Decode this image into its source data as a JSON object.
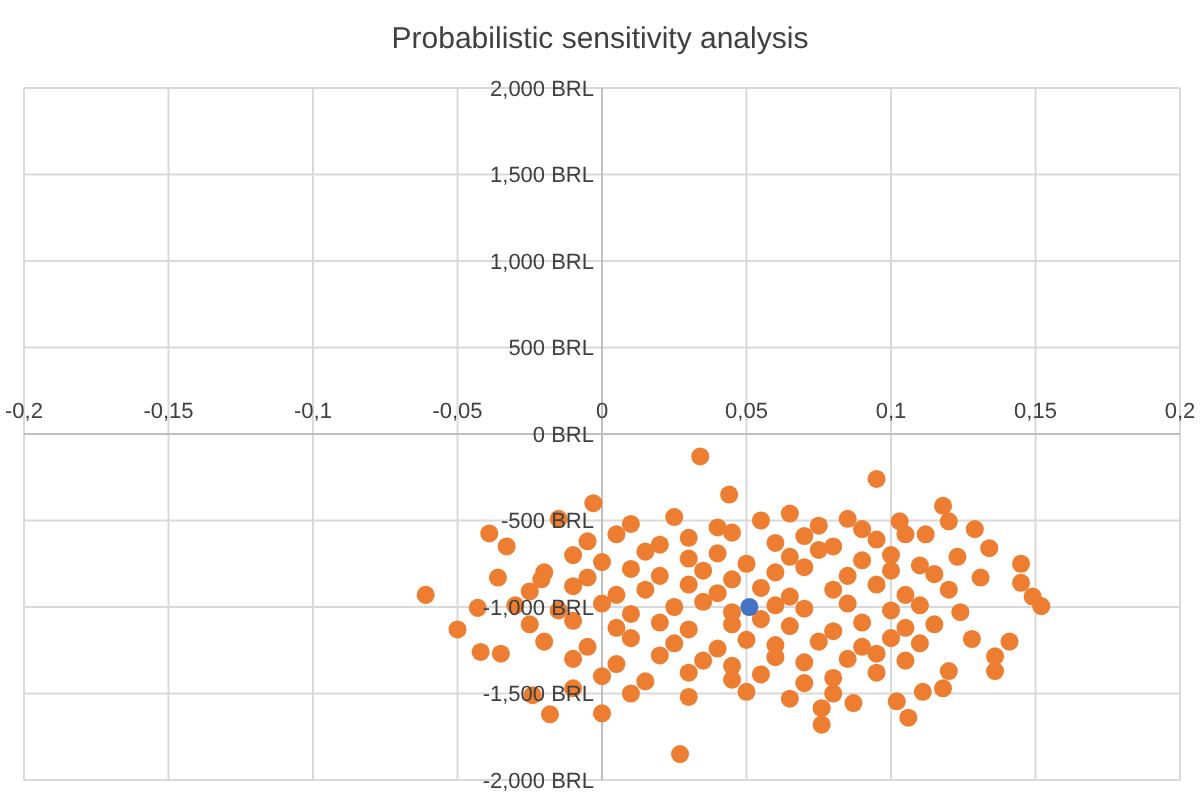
{
  "chart_data": {
    "type": "scatter",
    "title": "Probabilistic sensitivity analysis",
    "xlim": [
      -0.2,
      0.2
    ],
    "xticks": [
      {
        "value": -0.2,
        "label": "-0,2"
      },
      {
        "value": -0.15,
        "label": "-0,15"
      },
      {
        "value": -0.1,
        "label": "-0,1"
      },
      {
        "value": -0.05,
        "label": "-0,05"
      },
      {
        "value": 0,
        "label": "0"
      },
      {
        "value": 0.05,
        "label": "0,05"
      },
      {
        "value": 0.1,
        "label": "0,1"
      },
      {
        "value": 0.15,
        "label": "0,15"
      },
      {
        "value": 0.2,
        "label": "0,2"
      }
    ],
    "ylim": [
      -2000,
      2000
    ],
    "yticks": [
      {
        "value": -2000,
        "label": "-2,000 BRL"
      },
      {
        "value": -1500,
        "label": "-1,500 BRL"
      },
      {
        "value": -1000,
        "label": "-1,000 BRL"
      },
      {
        "value": -500,
        "label": "-500 BRL"
      },
      {
        "value": 0,
        "label": "0 BRL"
      },
      {
        "value": 500,
        "label": "500 BRL"
      },
      {
        "value": 1000,
        "label": "1,000 BRL"
      },
      {
        "value": 1500,
        "label": "1,500 BRL"
      },
      {
        "value": 2000,
        "label": "2,000 BRL"
      }
    ],
    "grid": true,
    "marker": "circle",
    "series": [
      {
        "color": "#ed7d31",
        "x": [
          0.01,
          0.025,
          0.04,
          0.055,
          0.065,
          0.075,
          0.085,
          0.09,
          -0.005,
          0.005,
          0.02,
          0.03,
          0.045,
          0.06,
          0.07,
          0.08,
          0.095,
          0.105,
          -0.01,
          0,
          0.015,
          0.03,
          0.04,
          0.05,
          0.065,
          0.075,
          0.09,
          0.1,
          0.11,
          -0.02,
          -0.005,
          0.01,
          0.02,
          0.035,
          0.045,
          0.06,
          0.07,
          0.085,
          0.1,
          0.115,
          -0.025,
          -0.01,
          0.005,
          0.015,
          0.03,
          0.04,
          0.055,
          0.065,
          0.08,
          0.095,
          0.105,
          0.12,
          -0.03,
          -0.015,
          0,
          0.01,
          0.025,
          0.035,
          0.045,
          0.06,
          0.07,
          0.085,
          0.1,
          0.11,
          -0.025,
          -0.01,
          0.005,
          0.02,
          0.03,
          0.045,
          0.055,
          0.065,
          0.08,
          0.09,
          0.105,
          0.115,
          -0.02,
          -0.005,
          0.01,
          0.025,
          0.04,
          0.05,
          0.06,
          0.075,
          0.09,
          0.1,
          0.11,
          -0.01,
          0.005,
          0.02,
          0.035,
          0.045,
          0.06,
          0.07,
          0.085,
          0.095,
          0.105,
          0,
          0.015,
          0.03,
          0.045,
          0.055,
          0.07,
          0.08,
          0.095,
          0.01,
          0.03,
          0.05,
          0.065,
          0.08,
          -0.061,
          -0.05,
          -0.042,
          -0.039,
          -0.033,
          -0.036,
          -0.035,
          -0.018,
          0.027,
          0.034,
          0.044,
          -0.003,
          -0.015,
          0,
          -0.01,
          -0.024,
          -0.043,
          -0.021,
          0.152,
          0.149,
          0.145,
          0.145,
          0.136,
          0.136,
          0.134,
          0.129,
          0.141,
          0.123,
          0.118,
          0.12,
          0.095,
          0.076,
          0.076,
          0.087,
          0.106,
          0.102,
          0.111,
          0.118,
          0.12,
          0.128,
          0.124,
          0.131,
          0.112,
          0.103
        ],
        "values": [
          -520,
          -480,
          -540,
          -500,
          -460,
          -530,
          -490,
          -550,
          -620,
          -580,
          -640,
          -600,
          -570,
          -630,
          -590,
          -650,
          -610,
          -580,
          -700,
          -740,
          -680,
          -720,
          -690,
          -750,
          -710,
          -670,
          -730,
          -700,
          -760,
          -800,
          -830,
          -780,
          -820,
          -790,
          -840,
          -800,
          -770,
          -820,
          -790,
          -810,
          -910,
          -880,
          -930,
          -900,
          -870,
          -920,
          -890,
          -940,
          -900,
          -870,
          -930,
          -900,
          -990,
          -1020,
          -980,
          -1040,
          -1000,
          -970,
          -1030,
          -990,
          -1010,
          -980,
          -1020,
          -990,
          -1100,
          -1080,
          -1120,
          -1090,
          -1130,
          -1100,
          -1070,
          -1110,
          -1140,
          -1090,
          -1120,
          -1100,
          -1200,
          -1230,
          -1180,
          -1210,
          -1240,
          -1190,
          -1220,
          -1200,
          -1230,
          -1180,
          -1210,
          -1300,
          -1330,
          -1280,
          -1310,
          -1340,
          -1290,
          -1320,
          -1300,
          -1270,
          -1310,
          -1400,
          -1430,
          -1380,
          -1420,
          -1390,
          -1440,
          -1410,
          -1380,
          -1500,
          -1520,
          -1490,
          -1530,
          -1500,
          -930,
          -1130,
          -1260,
          -575,
          -650,
          -830,
          -1270,
          -1620,
          -1850,
          -130,
          -350,
          -400,
          -490,
          -1615,
          -1470,
          -1510,
          -1005,
          -840,
          -995,
          -940,
          -750,
          -860,
          -1370,
          -1285,
          -660,
          -550,
          -1200,
          -710,
          -415,
          -505,
          -260,
          -1680,
          -1585,
          -1555,
          -1640,
          -1545,
          -1490,
          -1470,
          -1370,
          -1185,
          -1030,
          -830,
          -580,
          -505
        ]
      },
      {
        "color": "#4472c4",
        "x": [
          0.051
        ],
        "values": [
          -1000
        ]
      }
    ]
  }
}
